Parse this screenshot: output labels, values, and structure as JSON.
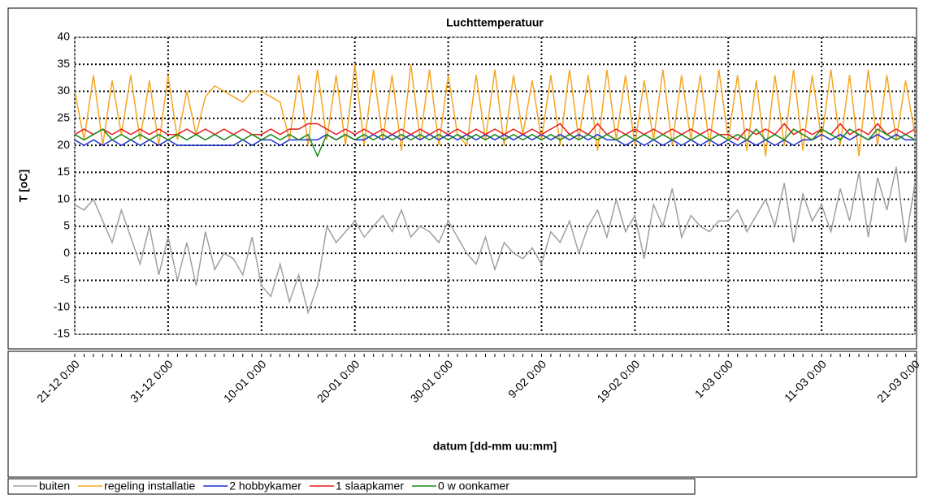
{
  "chart_data": {
    "type": "line",
    "title": "Luchttemperatuur",
    "y_label": "T [oC]",
    "x_label": "datum [dd-mm uu:mm]",
    "x": [
      "21-12 0:00",
      "22-12 0:00",
      "23-12 0:00",
      "24-12 0:00",
      "25-12 0:00",
      "26-12 0:00",
      "27-12 0:00",
      "28-12 0:00",
      "29-12 0:00",
      "30-12 0:00",
      "31-12 0:00",
      "1-01 0:00",
      "2-01 0:00",
      "3-01 0:00",
      "4-01 0:00",
      "5-01 0:00",
      "6-01 0:00",
      "7-01 0:00",
      "8-01 0:00",
      "9-01 0:00",
      "10-01 0:00",
      "11-01 0:00",
      "12-01 0:00",
      "13-01 0:00",
      "14-01 0:00",
      "15-01 0:00",
      "16-01 0:00",
      "17-01 0:00",
      "18-01 0:00",
      "19-01 0:00",
      "20-01 0:00",
      "21-01 0:00",
      "22-01 0:00",
      "23-01 0:00",
      "24-01 0:00",
      "25-01 0:00",
      "26-01 0:00",
      "27-01 0:00",
      "28-01 0:00",
      "29-01 0:00",
      "30-01 0:00",
      "31-01 0:00",
      "1-02 0:00",
      "2-02 0:00",
      "3-02 0:00",
      "4-02 0:00",
      "5-02 0:00",
      "6-02 0:00",
      "7-02 0:00",
      "8-02 0:00",
      "9-02 0:00",
      "10-02 0:00",
      "11-02 0:00",
      "12-02 0:00",
      "13-02 0:00",
      "14-02 0:00",
      "15-02 0:00",
      "16-02 0:00",
      "17-02 0:00",
      "18-02 0:00",
      "19-02 0:00",
      "20-02 0:00",
      "21-02 0:00",
      "22-02 0:00",
      "23-02 0:00",
      "24-02 0:00",
      "25-02 0:00",
      "26-02 0:00",
      "27-02 0:00",
      "28-02 0:00",
      "1-03 0:00",
      "2-03 0:00",
      "3-03 0:00",
      "4-03 0:00",
      "5-03 0:00",
      "6-03 0:00",
      "7-03 0:00",
      "8-03 0:00",
      "9-03 0:00",
      "10-03 0:00",
      "11-03 0:00",
      "12-03 0:00",
      "13-03 0:00",
      "14-03 0:00",
      "15-03 0:00",
      "16-03 0:00",
      "17-03 0:00",
      "18-03 0:00",
      "19-03 0:00",
      "20-03 0:00",
      "21-03 0:00"
    ],
    "xticks": [
      "21-12 0:00",
      "31-12 0:00",
      "10-01 0:00",
      "20-01 0:00",
      "30-01 0:00",
      "9-02 0:00",
      "19-02 0:00",
      "1-03 0:00",
      "11-03 0:00",
      "21-03 0:00"
    ],
    "ylim": [
      -15,
      40
    ],
    "yticks": [
      -15,
      -10,
      -5,
      0,
      5,
      10,
      15,
      20,
      25,
      30,
      35,
      40
    ],
    "grid": true,
    "series": [
      {
        "name": "buiten",
        "color": "#a0a0a0",
        "values": [
          9,
          8,
          10,
          6,
          2,
          8,
          3,
          -2,
          5,
          -4,
          3,
          -5,
          2,
          -6,
          4,
          -3,
          0,
          -1,
          -4,
          3,
          -6,
          -8,
          -2,
          -9,
          -4,
          -11,
          -6,
          5,
          2,
          4,
          6,
          3,
          5,
          7,
          4,
          8,
          3,
          5,
          4,
          2,
          6,
          3,
          0,
          -2,
          3,
          -3,
          2,
          0,
          -1,
          1,
          -2,
          4,
          2,
          6,
          0,
          5,
          8,
          3,
          10,
          4,
          7,
          -1,
          9,
          5,
          12,
          3,
          7,
          5,
          4,
          6,
          6,
          8,
          4,
          7,
          10,
          5,
          13,
          2,
          11,
          6,
          9,
          4,
          12,
          6,
          15,
          3,
          14,
          8,
          16,
          2,
          13
        ]
      },
      {
        "name": "regeling installatie",
        "color": "#f5a623",
        "values": [
          30,
          21,
          33,
          20,
          32,
          22,
          33,
          21,
          32,
          20,
          33,
          21,
          30,
          22,
          29,
          31,
          30,
          29,
          28,
          30,
          30,
          29,
          28,
          21,
          33,
          20,
          34,
          21,
          33,
          20,
          35,
          20,
          34,
          21,
          33,
          19,
          35,
          21,
          34,
          20,
          33,
          22,
          20,
          33,
          21,
          34,
          20,
          33,
          22,
          32,
          21,
          33,
          20,
          34,
          21,
          33,
          19,
          34,
          21,
          33,
          20,
          32,
          21,
          34,
          20,
          33,
          21,
          33,
          20,
          34,
          21,
          33,
          19,
          32,
          18,
          33,
          20,
          34,
          19,
          33,
          21,
          34,
          20,
          33,
          18,
          34,
          20,
          33,
          21,
          32,
          22
        ]
      },
      {
        "name": "2 hobbykamer",
        "color": "#1f2fd0",
        "values": [
          21,
          20,
          21,
          20,
          21,
          20,
          21,
          20,
          21,
          20,
          21,
          20,
          20,
          20,
          20,
          20,
          20,
          20,
          21,
          20,
          21,
          21,
          20,
          21,
          21,
          21,
          21,
          22,
          21,
          22,
          21,
          21,
          22,
          21,
          22,
          21,
          22,
          21,
          22,
          21,
          22,
          21,
          22,
          21,
          22,
          21,
          22,
          21,
          22,
          21,
          22,
          21,
          22,
          21,
          22,
          21,
          22,
          21,
          21,
          20,
          21,
          20,
          21,
          20,
          21,
          20,
          21,
          20,
          21,
          20,
          21,
          20,
          21,
          20,
          21,
          20,
          21,
          20,
          21,
          21,
          22,
          21,
          22,
          21,
          22,
          21,
          22,
          21,
          22,
          21,
          21
        ]
      },
      {
        "name": "1 slaapkamer",
        "color": "#e81c1c",
        "values": [
          22,
          23,
          22,
          23,
          22,
          23,
          22,
          23,
          22,
          23,
          22,
          22,
          23,
          22,
          23,
          22,
          23,
          22,
          23,
          22,
          22,
          23,
          22,
          23,
          23,
          24,
          24,
          23,
          22,
          23,
          22,
          23,
          22,
          23,
          22,
          23,
          22,
          23,
          22,
          23,
          22,
          23,
          22,
          23,
          22,
          23,
          22,
          23,
          22,
          23,
          22,
          23,
          24,
          22,
          23,
          22,
          24,
          22,
          23,
          22,
          23,
          22,
          23,
          22,
          23,
          22,
          23,
          22,
          23,
          22,
          22,
          21,
          23,
          22,
          23,
          22,
          24,
          22,
          23,
          22,
          23,
          22,
          24,
          22,
          23,
          22,
          24,
          22,
          23,
          22,
          23
        ]
      },
      {
        "name": "0 w oonkamer",
        "color": "#1a8a1a",
        "values": [
          22,
          21,
          22,
          23,
          21,
          22,
          21,
          22,
          21,
          22,
          21,
          22,
          21,
          22,
          21,
          22,
          21,
          22,
          21,
          22,
          21,
          22,
          21,
          22,
          21,
          22,
          18,
          22,
          21,
          22,
          21,
          22,
          21,
          22,
          21,
          22,
          21,
          22,
          21,
          22,
          21,
          22,
          21,
          22,
          21,
          22,
          21,
          22,
          21,
          22,
          21,
          22,
          21,
          22,
          21,
          22,
          21,
          22,
          21,
          22,
          21,
          22,
          21,
          22,
          21,
          22,
          21,
          22,
          21,
          22,
          21,
          22,
          21,
          23,
          21,
          22,
          21,
          23,
          22,
          21,
          23,
          22,
          21,
          23,
          22,
          21,
          23,
          22,
          21,
          22,
          21
        ]
      }
    ]
  }
}
